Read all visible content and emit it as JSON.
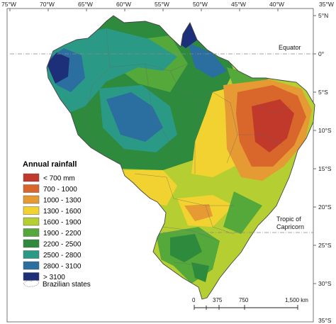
{
  "axes": {
    "longitude_labels": [
      "75°W",
      "70°W",
      "65°W",
      "60°W",
      "55°W",
      "50°W",
      "45°W",
      "40°W",
      "35°W"
    ],
    "latitude_labels": [
      "5°N",
      "0°",
      "5°S",
      "10°S",
      "15°S",
      "20°S",
      "25°S",
      "30°S",
      "35°S"
    ]
  },
  "annotations": {
    "equator": "Equator",
    "tropic_line1": "Tropic of",
    "tropic_line2": "Capricorn"
  },
  "legend": {
    "title": "Annual rainfall",
    "items": [
      {
        "label": "< 700 mm",
        "color": "#c0392b"
      },
      {
        "label": "700 - 1000",
        "color": "#d9662b"
      },
      {
        "label": "1000 - 1300",
        "color": "#e59a34"
      },
      {
        "label": "1300 - 1600",
        "color": "#f2d230"
      },
      {
        "label": "1600 - 1900",
        "color": "#b5cf33"
      },
      {
        "label": "1900 - 2200",
        "color": "#55a83a"
      },
      {
        "label": "2200 - 2500",
        "color": "#2e8b3d"
      },
      {
        "label": "2500 - 2800",
        "color": "#2a9a86"
      },
      {
        "label": "2800 - 3100",
        "color": "#2b6fa0"
      },
      {
        "label": "> 3100",
        "color": "#1c2f78"
      }
    ],
    "states_label": "Brazilian states"
  },
  "scale_bar": {
    "labels": [
      "0",
      "375",
      "750",
      "1,500 km"
    ]
  }
}
